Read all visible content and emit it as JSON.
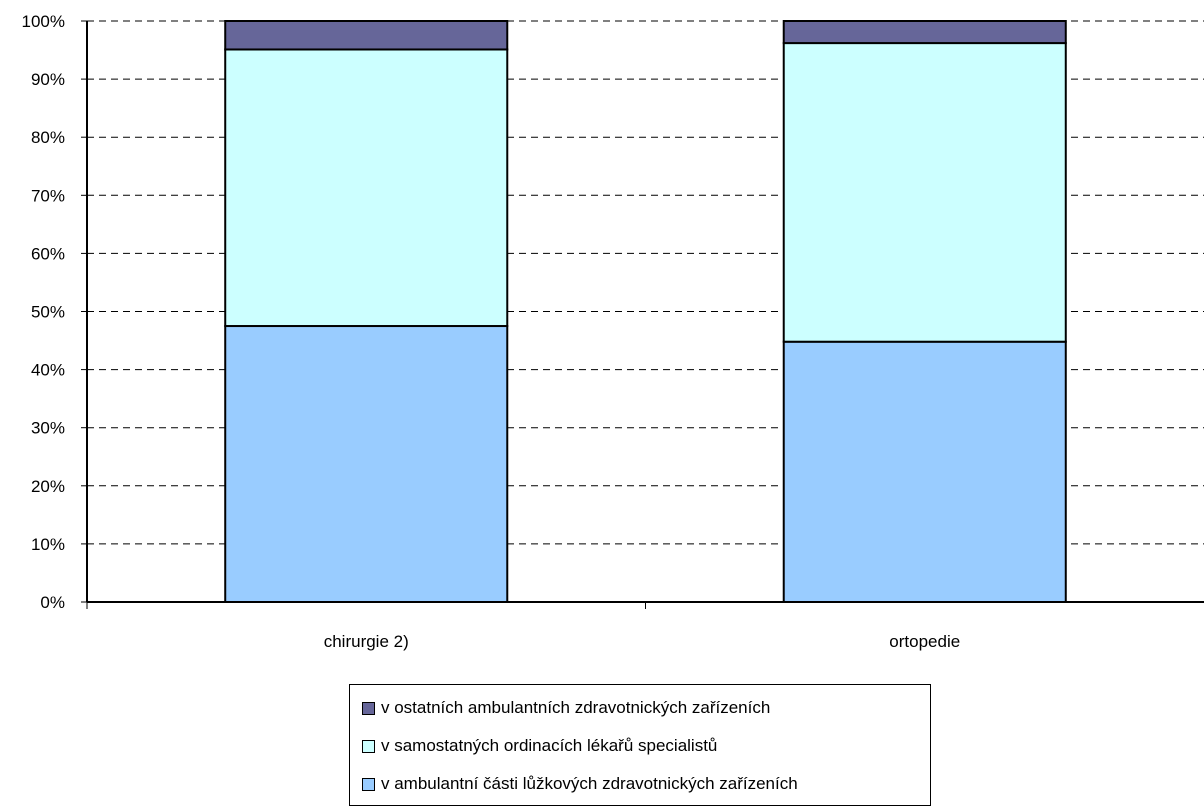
{
  "chart_data": {
    "type": "bar",
    "stacked": true,
    "percent_stacked": true,
    "categories": [
      "chirurgie 2)",
      "ortopedie"
    ],
    "series": [
      {
        "name": "v ambulantní části lůžkových zdravotnických zařízeních",
        "values": [
          47.5,
          44.8
        ],
        "color": "#99ccff"
      },
      {
        "name": "v samostatných ordinacích lékařů specialistů",
        "values": [
          47.6,
          51.4
        ],
        "color": "#ccffff"
      },
      {
        "name": "v ostatních ambulantních zdravotnických zařízeních",
        "values": [
          4.9,
          3.8
        ],
        "color": "#666699"
      }
    ],
    "yticks": [
      "0%",
      "10%",
      "20%",
      "30%",
      "40%",
      "50%",
      "60%",
      "70%",
      "80%",
      "90%",
      "100%"
    ],
    "ylim": [
      0,
      100
    ],
    "grid": true,
    "legend_position": "bottom"
  }
}
